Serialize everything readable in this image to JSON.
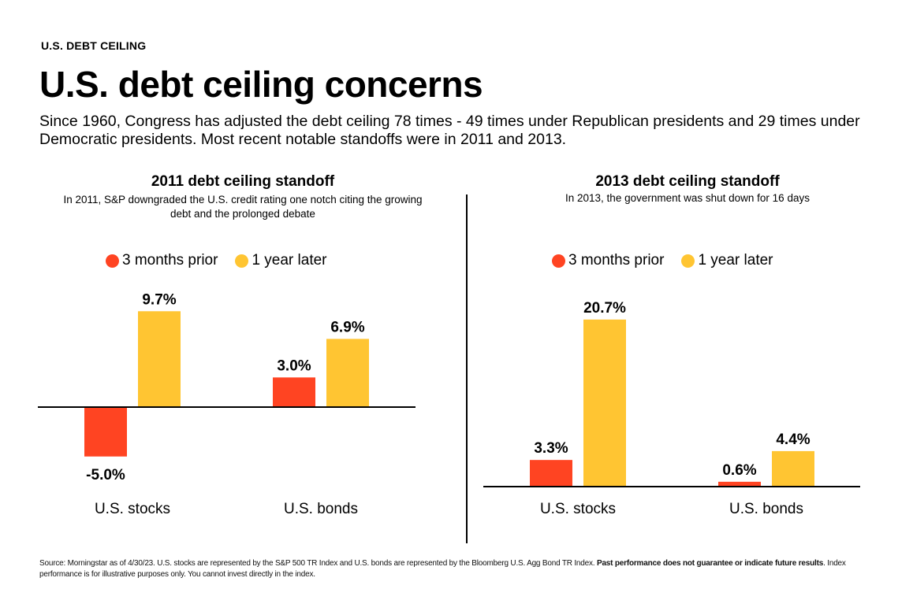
{
  "header": {
    "eyebrow": "U.S. DEBT CEILING",
    "title": "U.S. debt ceiling concerns",
    "subtitle": "Since 1960, Congress has adjusted the debt ceiling 78  times - 49 times under Republican presidents and 29 times under Democratic presidents.  Most recent notable standoffs were in 2011 and 2013."
  },
  "colors": {
    "three_months_prior": "#FF4422",
    "one_year_later": "#FFC532"
  },
  "chart_data": [
    {
      "type": "bar",
      "title": "2011 debt ceiling standoff",
      "subtitle": "In 2011, S&P downgraded the U.S. credit rating one notch citing the growing debt and the prolonged debate",
      "categories": [
        "U.S. stocks",
        "U.S. bonds"
      ],
      "series": [
        {
          "name": "3 months prior",
          "values": [
            -5.0,
            3.0
          ],
          "labels": [
            "-5.0%",
            "3.0%"
          ]
        },
        {
          "name": "1 year later",
          "values": [
            9.7,
            6.9
          ],
          "labels": [
            "9.7%",
            "6.9%"
          ]
        }
      ],
      "legend": [
        "3 months prior",
        "1 year later"
      ],
      "legend_position": "top",
      "ylim": [
        -6,
        11
      ],
      "unit": "%",
      "grid": false
    },
    {
      "type": "bar",
      "title": "2013 debt ceiling standoff",
      "subtitle": "In 2013, the government was shut down for 16 days",
      "categories": [
        "U.S. stocks",
        "U.S. bonds"
      ],
      "series": [
        {
          "name": "3 months prior",
          "values": [
            3.3,
            0.6
          ],
          "labels": [
            "3.3%",
            "0.6%"
          ]
        },
        {
          "name": "1 year later",
          "values": [
            20.7,
            4.4
          ],
          "labels": [
            "20.7%",
            "4.4%"
          ]
        }
      ],
      "legend": [
        "3 months prior",
        "1 year later"
      ],
      "legend_position": "top",
      "ylim": [
        0,
        23
      ],
      "unit": "%",
      "grid": false
    }
  ],
  "footnote": {
    "text_before": "Source: Morningstar as of 4/30/23. U.S. stocks are represented by the S&P 500 TR Index and U.S. bonds are represented by the Bloomberg U.S. Agg Bond TR Index. ",
    "bold": "Past performance does not guarantee or indicate future results",
    "text_after": ". Index performance is for illustrative purposes only. You cannot invest directly in the index."
  }
}
